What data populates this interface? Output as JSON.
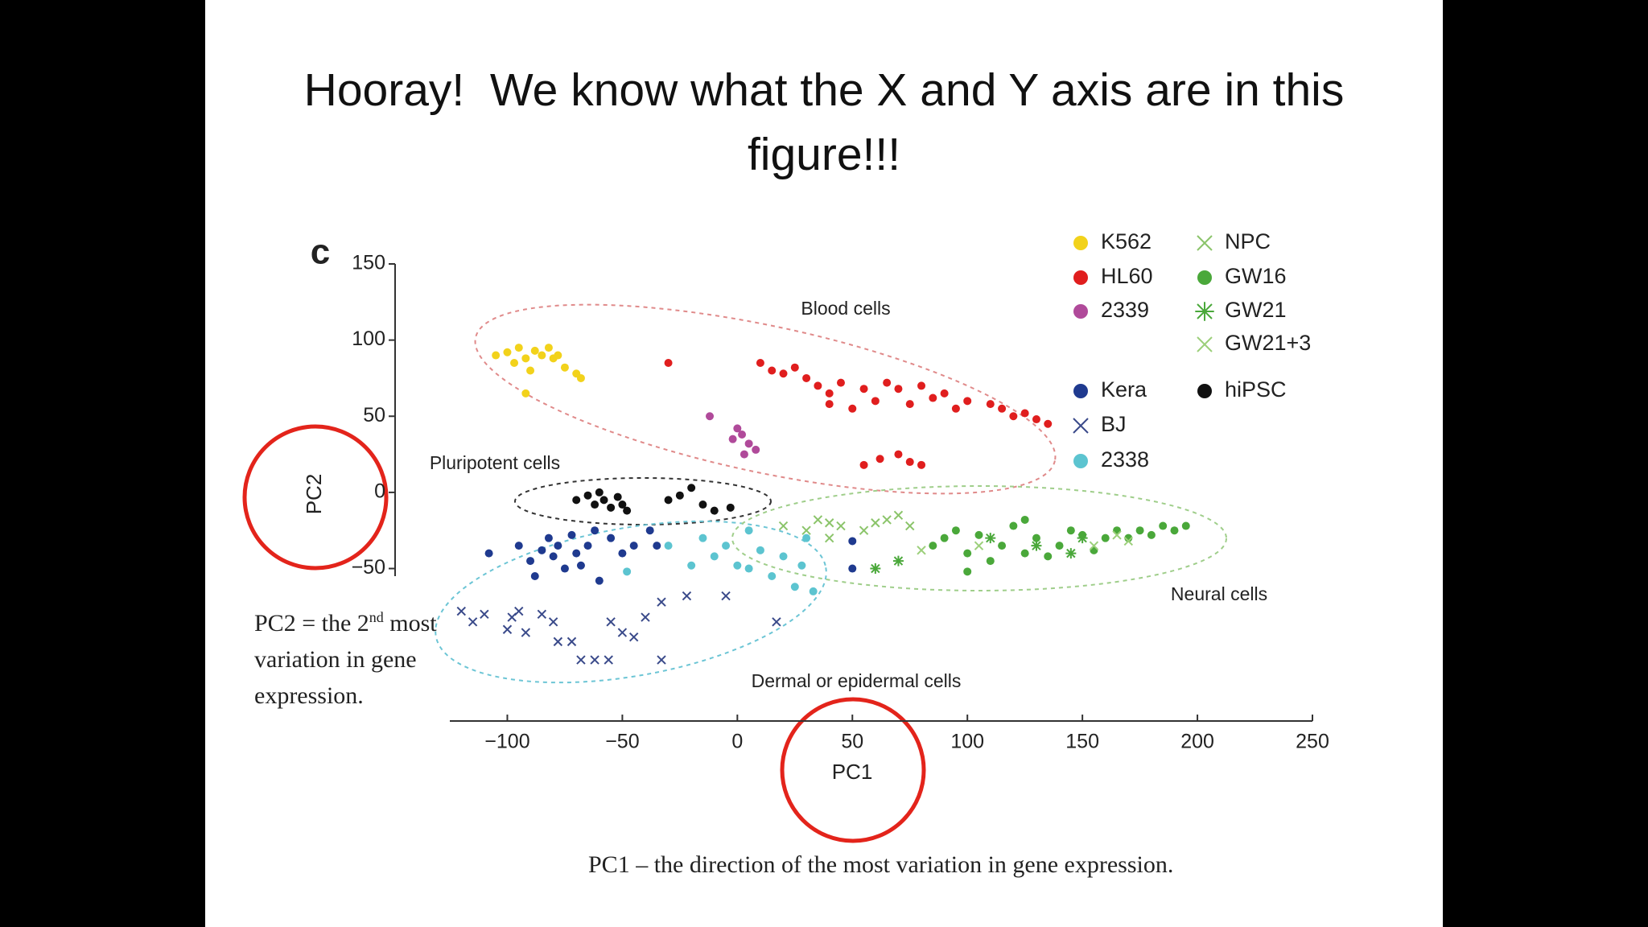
{
  "slide": {
    "title": "Hooray!  We know what the X and Y axis are in this figure!!!",
    "pc2_note": {
      "before": "PC2 = the 2",
      "sup": "nd",
      "after": " most variation in gene expression."
    },
    "pc1_note": "PC1 – the direction of the most variation in gene expression."
  },
  "chart_data": {
    "type": "scatter",
    "panel_label": "c",
    "x_label": "PC1",
    "y_label": "PC2",
    "annotations": [
      "Blood cells",
      "Pluripotent cells",
      "Neural cells",
      "Dermal or epidermal cells"
    ],
    "xlim": [
      -125,
      250
    ],
    "ylim": [
      -55,
      150
    ],
    "xticks": [
      {
        "value": -100,
        "label": "−100"
      },
      {
        "value": -50,
        "label": "−50"
      },
      0,
      50,
      100,
      150,
      200,
      250
    ],
    "yticks": [
      {
        "value": -50,
        "label": "−50"
      },
      0,
      50,
      100,
      150
    ],
    "series": [
      {
        "name": "K562",
        "color": "#f2d21b",
        "marker": "o",
        "x": [
          -105,
          -100,
          -95,
          -92,
          -88,
          -85,
          -80,
          -97,
          -90,
          -75,
          -70,
          -68,
          -92,
          -82,
          -78
        ],
        "y": [
          90,
          92,
          95,
          88,
          93,
          90,
          88,
          85,
          80,
          82,
          78,
          75,
          65,
          95,
          90
        ]
      },
      {
        "name": "HL60",
        "color": "#e01e1e",
        "marker": "o",
        "x": [
          -30,
          10,
          15,
          20,
          25,
          30,
          35,
          40,
          45,
          55,
          60,
          65,
          70,
          75,
          80,
          85,
          90,
          95,
          100,
          110,
          115,
          120,
          125,
          130,
          135,
          50,
          40,
          55,
          62,
          70,
          75,
          80
        ],
        "y": [
          85,
          85,
          80,
          78,
          82,
          75,
          70,
          65,
          72,
          68,
          60,
          72,
          68,
          58,
          70,
          62,
          65,
          55,
          60,
          58,
          55,
          50,
          52,
          48,
          45,
          55,
          58,
          18,
          22,
          25,
          20,
          18
        ]
      },
      {
        "name": "2339",
        "color": "#b04a9a",
        "marker": "o",
        "x": [
          -12,
          0,
          2,
          5,
          8,
          3,
          -2
        ],
        "y": [
          50,
          42,
          38,
          32,
          28,
          25,
          35
        ]
      },
      {
        "name": "NPC",
        "color": "#8bc46a",
        "marker": "x",
        "x": [
          20,
          30,
          35,
          40,
          45,
          55,
          60,
          65,
          70,
          75,
          40
        ],
        "y": [
          -22,
          -25,
          -18,
          -20,
          -22,
          -25,
          -20,
          -18,
          -15,
          -22,
          -30
        ]
      },
      {
        "name": "GW16",
        "color": "#4aa83a",
        "marker": "o",
        "x": [
          85,
          90,
          95,
          100,
          105,
          110,
          115,
          120,
          125,
          130,
          135,
          140,
          145,
          150,
          155,
          160,
          165,
          170,
          175,
          180,
          185,
          190,
          195,
          100,
          125
        ],
        "y": [
          -35,
          -30,
          -25,
          -40,
          -28,
          -45,
          -35,
          -22,
          -40,
          -30,
          -42,
          -35,
          -25,
          -28,
          -38,
          -30,
          -25,
          -30,
          -25,
          -28,
          -22,
          -25,
          -22,
          -52,
          -18
        ]
      },
      {
        "name": "GW21",
        "color": "#4aa83a",
        "marker": "*",
        "x": [
          110,
          130,
          145,
          150,
          70,
          60
        ],
        "y": [
          -30,
          -35,
          -40,
          -30,
          -45,
          -50
        ]
      },
      {
        "name": "GW21+3",
        "color": "#9ccf7a",
        "marker": "x",
        "x": [
          80,
          105,
          155,
          165,
          170
        ],
        "y": [
          -38,
          -35,
          -35,
          -28,
          -32
        ]
      },
      {
        "name": "Kera",
        "color": "#1f3a8f",
        "marker": "o",
        "x": [
          -108,
          -95,
          -90,
          -85,
          -82,
          -80,
          -78,
          -75,
          -72,
          -70,
          -68,
          -65,
          -62,
          -55,
          -50,
          -45,
          -38,
          -35,
          -60,
          -88,
          50,
          50
        ],
        "y": [
          -40,
          -35,
          -45,
          -38,
          -30,
          -42,
          -35,
          -50,
          -28,
          -40,
          -48,
          -35,
          -25,
          -30,
          -40,
          -35,
          -25,
          -35,
          -58,
          -55,
          -32,
          -50
        ]
      },
      {
        "name": "BJ",
        "color": "#3a4a8a",
        "marker": "x",
        "x": [
          -120,
          -115,
          -110,
          -100,
          -98,
          -95,
          -92,
          -85,
          -80,
          -78,
          -72,
          -68,
          -62,
          -56,
          -55,
          -50,
          -45,
          -40,
          -33,
          -33,
          -22,
          -5,
          17
        ],
        "y": [
          -78,
          -85,
          -80,
          -90,
          -82,
          -78,
          -92,
          -80,
          -85,
          -98,
          -98,
          -110,
          -110,
          -110,
          -85,
          -92,
          -95,
          -82,
          -110,
          -72,
          -68,
          -68,
          -85
        ]
      },
      {
        "name": "2338",
        "color": "#5cc4d0",
        "marker": "o",
        "x": [
          -48,
          -30,
          -20,
          -15,
          -10,
          -5,
          0,
          5,
          10,
          15,
          20,
          25,
          30,
          33,
          28,
          5
        ],
        "y": [
          -52,
          -35,
          -48,
          -30,
          -42,
          -35,
          -48,
          -25,
          -38,
          -55,
          -42,
          -62,
          -30,
          -65,
          -48,
          -50
        ]
      },
      {
        "name": "hiPSC",
        "color": "#111111",
        "marker": "o",
        "x": [
          -70,
          -65,
          -62,
          -60,
          -58,
          -55,
          -52,
          -50,
          -48,
          -30,
          -25,
          -20,
          -15,
          -10,
          -3
        ],
        "y": [
          -5,
          -2,
          -8,
          0,
          -5,
          -10,
          -3,
          -8,
          -12,
          -5,
          -2,
          3,
          -8,
          -12,
          -10
        ]
      }
    ]
  }
}
